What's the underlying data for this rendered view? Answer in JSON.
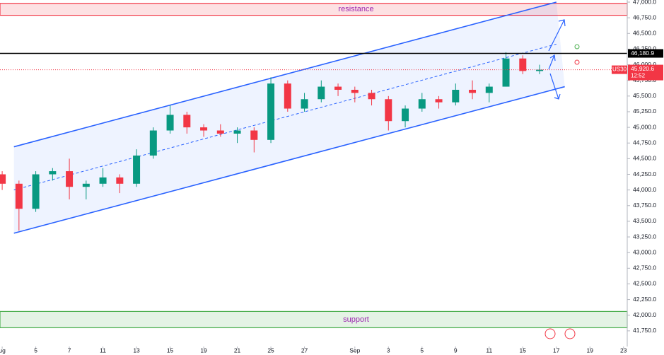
{
  "chart_data": {
    "type": "candlestick",
    "symbol": "US30",
    "timer": "12:52",
    "up_color": "#089981",
    "down_color": "#f23645",
    "x": [
      0,
      1,
      2,
      3,
      4,
      5,
      6,
      7,
      8,
      9,
      10,
      11,
      12,
      13,
      14,
      15,
      16,
      17,
      18,
      19,
      20,
      21,
      22,
      23,
      24,
      25,
      26,
      27,
      28,
      29,
      30,
      31,
      32
    ],
    "open": [
      44250,
      44100,
      43700,
      44250,
      44300,
      44050,
      44100,
      44200,
      44100,
      44550,
      44950,
      45200,
      45000,
      44950,
      44900,
      44950,
      44800,
      45700,
      45300,
      45450,
      45650,
      45600,
      45550,
      45450,
      45100,
      45300,
      45450,
      45400,
      45600,
      45550,
      45650,
      46100,
      45900
    ],
    "high": [
      44300,
      44150,
      44300,
      44350,
      44500,
      44150,
      44350,
      44250,
      44650,
      45000,
      45350,
      45250,
      45050,
      45050,
      45000,
      45000,
      45800,
      45750,
      45550,
      45750,
      45700,
      45650,
      45600,
      45500,
      45350,
      45550,
      45500,
      45700,
      45750,
      45700,
      46200,
      46150,
      46000
    ],
    "low": [
      44000,
      43350,
      43650,
      44150,
      43850,
      43850,
      44050,
      43950,
      44050,
      44500,
      44900,
      44900,
      44850,
      44850,
      44750,
      44600,
      44750,
      45250,
      45250,
      45400,
      45500,
      45400,
      45350,
      44950,
      45000,
      45250,
      45300,
      45350,
      45450,
      45400,
      45650,
      45850,
      45850
    ],
    "close": [
      44100,
      43700,
      44250,
      44300,
      44050,
      44100,
      44200,
      44100,
      44550,
      44950,
      45200,
      45000,
      44950,
      44900,
      44950,
      44800,
      45700,
      45300,
      45450,
      45650,
      45600,
      45550,
      45450,
      45100,
      45300,
      45450,
      45400,
      45600,
      45550,
      45650,
      46100,
      45900,
      45920.6
    ],
    "xlim": [
      -0.13,
      37.22
    ],
    "xticks": [
      {
        "value": 0,
        "label": "ug"
      },
      {
        "value": 2,
        "label": "5"
      },
      {
        "value": 4,
        "label": "7"
      },
      {
        "value": 6,
        "label": "11"
      },
      {
        "value": 8,
        "label": "13"
      },
      {
        "value": 10,
        "label": "15"
      },
      {
        "value": 12,
        "label": "19"
      },
      {
        "value": 14,
        "label": "21"
      },
      {
        "value": 16,
        "label": "25"
      },
      {
        "value": 18,
        "label": "27"
      },
      {
        "value": 21,
        "label": "Sep"
      },
      {
        "value": 23,
        "label": "3"
      },
      {
        "value": 25,
        "label": "5"
      },
      {
        "value": 27,
        "label": "9"
      },
      {
        "value": 29,
        "label": "11"
      },
      {
        "value": 31,
        "label": "15"
      },
      {
        "value": 33,
        "label": "17"
      },
      {
        "value": 35,
        "label": "19"
      },
      {
        "value": 37,
        "label": "23"
      }
    ],
    "ylim": [
      41500,
      47034
    ],
    "yticks": [
      {
        "value": 41750,
        "label": "41,750.0"
      },
      {
        "value": 42000,
        "label": "42,000.0"
      },
      {
        "value": 42250,
        "label": "42,250.0"
      },
      {
        "value": 42500,
        "label": "42,500.0"
      },
      {
        "value": 42750,
        "label": "42,750.0"
      },
      {
        "value": 43000,
        "label": "43,000.0"
      },
      {
        "value": 43250,
        "label": "43,250.0"
      },
      {
        "value": 43500,
        "label": "43,500.0"
      },
      {
        "value": 43750,
        "label": "43,750.0"
      },
      {
        "value": 44000,
        "label": "44,000.0"
      },
      {
        "value": 44250,
        "label": "44,250.0"
      },
      {
        "value": 44500,
        "label": "44,500.0"
      },
      {
        "value": 44750,
        "label": "44,750.0"
      },
      {
        "value": 45000,
        "label": "45,000.0"
      },
      {
        "value": 45250,
        "label": "45,250.0"
      },
      {
        "value": 45500,
        "label": "45,500.0"
      },
      {
        "value": 45750,
        "label": "45,750.0"
      },
      {
        "value": 46000,
        "label": "46,000.0"
      },
      {
        "value": 46250,
        "label": "46,250.0"
      },
      {
        "value": 46500,
        "label": "46,500.0"
      },
      {
        "value": 46750,
        "label": "46,750.0"
      },
      {
        "value": 47000,
        "label": "47,000.0"
      }
    ],
    "zones": [
      {
        "label": "resistance",
        "range": [
          46790,
          46980
        ],
        "color": "#f23645"
      },
      {
        "label": "support",
        "range": [
          41800,
          42060
        ],
        "color": "#4caf50"
      }
    ],
    "channel": {
      "upper": [
        [
          0.7,
          44690
        ],
        [
          33,
          47000
        ]
      ],
      "middle": [
        [
          0.7,
          44000
        ],
        [
          33,
          46330
        ]
      ],
      "lower": [
        [
          0.7,
          43310
        ],
        [
          33.5,
          45650
        ]
      ],
      "color": "#2962ff"
    },
    "level": {
      "value": 46180.9,
      "label": "46,180.9"
    },
    "last_price": {
      "value": 45920.6,
      "label": "45,920.6"
    }
  }
}
